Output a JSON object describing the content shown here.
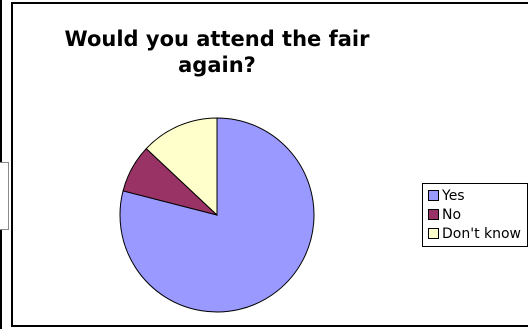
{
  "chart_data": {
    "type": "pie",
    "title": "Would you attend the fair\nagain?",
    "categories": [
      "Yes",
      "No",
      "Don't know"
    ],
    "values": [
      79,
      8,
      13
    ],
    "colors": [
      "#9999ff",
      "#993366",
      "#ffffcc"
    ],
    "legend_position": "right",
    "start_angle_deg": 0,
    "direction": "clockwise",
    "data_labels": false
  },
  "legend": {
    "items": [
      {
        "label": "Yes",
        "color": "#9999ff"
      },
      {
        "label": "No",
        "color": "#993366"
      },
      {
        "label": "Don't know",
        "color": "#ffffcc"
      }
    ]
  }
}
